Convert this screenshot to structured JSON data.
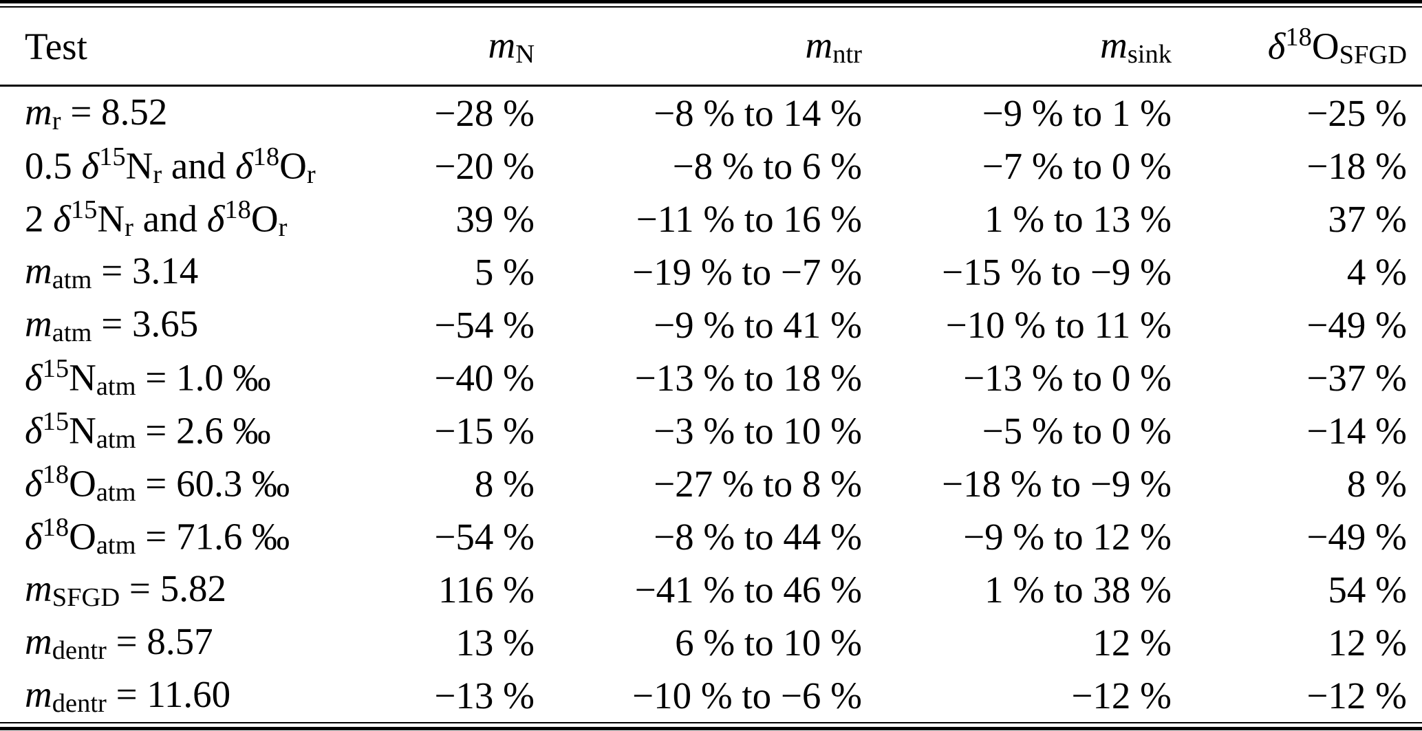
{
  "page": {
    "background": "#ffffff",
    "text_color": "#000000",
    "rule_color": "#000000"
  },
  "table": {
    "header": {
      "test": "Test",
      "mN": [
        {
          "t": "i",
          "v": "m"
        },
        {
          "t": "sub",
          "v": "N"
        }
      ],
      "mntr": [
        {
          "t": "i",
          "v": "m"
        },
        {
          "t": "sub",
          "v": "ntr"
        }
      ],
      "msink": [
        {
          "t": "i",
          "v": "m"
        },
        {
          "t": "sub",
          "v": "sink"
        }
      ],
      "dO": [
        {
          "t": "i",
          "v": "δ"
        },
        {
          "t": "sup",
          "v": "18"
        },
        {
          "t": "n",
          "v": "O"
        },
        {
          "t": "sub",
          "v": "SFGD"
        }
      ]
    },
    "rows": [
      {
        "test": [
          {
            "t": "i",
            "v": "m"
          },
          {
            "t": "sub",
            "v": "r"
          },
          {
            "t": "n",
            "v": " = 8.52"
          }
        ],
        "mN": "−28 %",
        "mntr": "−8 % to 14 %",
        "msink": "−9 % to 1 %",
        "dO": "−25 %"
      },
      {
        "test": [
          {
            "t": "n",
            "v": "0.5 "
          },
          {
            "t": "i",
            "v": "δ"
          },
          {
            "t": "sup",
            "v": "15"
          },
          {
            "t": "n",
            "v": "N"
          },
          {
            "t": "sub",
            "v": "r"
          },
          {
            "t": "n",
            "v": " and "
          },
          {
            "t": "i",
            "v": "δ"
          },
          {
            "t": "sup",
            "v": "18"
          },
          {
            "t": "n",
            "v": "O"
          },
          {
            "t": "sub",
            "v": "r"
          }
        ],
        "mN": "−20 %",
        "mntr": "−8 % to 6 %",
        "msink": "−7 % to 0 %",
        "dO": "−18 %"
      },
      {
        "test": [
          {
            "t": "n",
            "v": "2 "
          },
          {
            "t": "i",
            "v": "δ"
          },
          {
            "t": "sup",
            "v": "15"
          },
          {
            "t": "n",
            "v": "N"
          },
          {
            "t": "sub",
            "v": "r"
          },
          {
            "t": "n",
            "v": " and "
          },
          {
            "t": "i",
            "v": "δ"
          },
          {
            "t": "sup",
            "v": "18"
          },
          {
            "t": "n",
            "v": "O"
          },
          {
            "t": "sub",
            "v": "r"
          }
        ],
        "mN": "39 %",
        "mntr": "−11 % to 16 %",
        "msink": "1 % to 13 %",
        "dO": "37 %"
      },
      {
        "test": [
          {
            "t": "i",
            "v": "m"
          },
          {
            "t": "sub",
            "v": "atm"
          },
          {
            "t": "n",
            "v": " = 3.14"
          }
        ],
        "mN": "5 %",
        "mntr": "−19 % to −7 %",
        "msink": "−15 % to −9 %",
        "dO": "4 %"
      },
      {
        "test": [
          {
            "t": "i",
            "v": "m"
          },
          {
            "t": "sub",
            "v": "atm"
          },
          {
            "t": "n",
            "v": " = 3.65"
          }
        ],
        "mN": "−54 %",
        "mntr": "−9 % to 41 %",
        "msink": "−10 % to 11 %",
        "dO": "−49 %"
      },
      {
        "test": [
          {
            "t": "i",
            "v": "δ"
          },
          {
            "t": "sup",
            "v": "15"
          },
          {
            "t": "n",
            "v": "N"
          },
          {
            "t": "sub",
            "v": "atm"
          },
          {
            "t": "n",
            "v": " = 1.0 ‰"
          }
        ],
        "mN": "−40 %",
        "mntr": "−13 % to 18 %",
        "msink": "−13 % to 0 %",
        "dO": "−37 %"
      },
      {
        "test": [
          {
            "t": "i",
            "v": "δ"
          },
          {
            "t": "sup",
            "v": "15"
          },
          {
            "t": "n",
            "v": "N"
          },
          {
            "t": "sub",
            "v": "atm"
          },
          {
            "t": "n",
            "v": " = 2.6 ‰"
          }
        ],
        "mN": "−15 %",
        "mntr": "−3 % to 10 %",
        "msink": "−5 % to 0 %",
        "dO": "−14 %"
      },
      {
        "test": [
          {
            "t": "i",
            "v": "δ"
          },
          {
            "t": "sup",
            "v": "18"
          },
          {
            "t": "n",
            "v": "O"
          },
          {
            "t": "sub",
            "v": "atm"
          },
          {
            "t": "n",
            "v": " = 60.3 ‰"
          }
        ],
        "mN": "8 %",
        "mntr": "−27 % to 8 %",
        "msink": "−18 % to −9 %",
        "dO": "8 %"
      },
      {
        "test": [
          {
            "t": "i",
            "v": "δ"
          },
          {
            "t": "sup",
            "v": "18"
          },
          {
            "t": "n",
            "v": "O"
          },
          {
            "t": "sub",
            "v": "atm"
          },
          {
            "t": "n",
            "v": " = 71.6 ‰"
          }
        ],
        "mN": "−54 %",
        "mntr": "−8 % to 44 %",
        "msink": "−9 % to 12 %",
        "dO": "−49 %"
      },
      {
        "test": [
          {
            "t": "i",
            "v": "m"
          },
          {
            "t": "sub",
            "v": "SFGD"
          },
          {
            "t": "n",
            "v": " = 5.82"
          }
        ],
        "mN": "116 %",
        "mntr": "−41 % to 46 %",
        "msink": "1 % to 38 %",
        "dO": "54 %"
      },
      {
        "test": [
          {
            "t": "i",
            "v": "m"
          },
          {
            "t": "sub",
            "v": "dentr"
          },
          {
            "t": "n",
            "v": " = 8.57"
          }
        ],
        "mN": "13 %",
        "mntr": "6 % to 10 %",
        "msink": "12 %",
        "dO": "12 %"
      },
      {
        "test": [
          {
            "t": "i",
            "v": "m"
          },
          {
            "t": "sub",
            "v": "dentr"
          },
          {
            "t": "n",
            "v": " = 11.60"
          }
        ],
        "mN": "−13 %",
        "mntr": "−10 % to −6 %",
        "msink": "−12 %",
        "dO": "−12 %"
      }
    ]
  }
}
